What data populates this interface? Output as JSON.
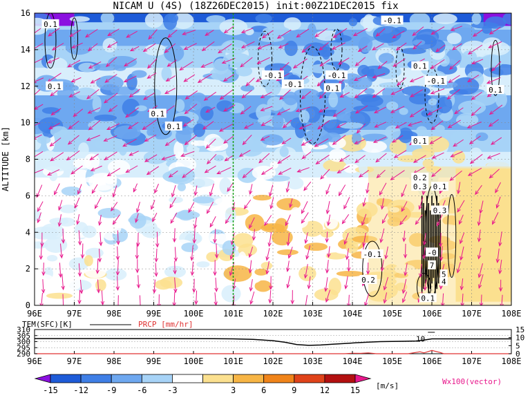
{
  "title": "NICAM U (4S) (18Z26DEC2015) init:00Z21DEC2015 fix",
  "colors": {
    "levels": [
      "#8b10e0",
      "#1e5bd8",
      "#3f7fe6",
      "#6ea8f0",
      "#a7d3f7",
      "#d8eefc",
      "#ffffff",
      "#fbe08f",
      "#f7b545",
      "#f0841a",
      "#e0431a",
      "#b31010",
      "#e8188c"
    ],
    "vector": "#e8188c",
    "contour": "#000000",
    "marker_line": "#1aa01a",
    "temperature": "#000000",
    "precipitation": "#e03030"
  },
  "chart_data": [
    {
      "type": "heatmap",
      "title": "NICAM U (4S) (18Z26DEC2015) init:00Z21DEC2015 fix",
      "xlabel": "",
      "ylabel": "ALTITUDE [km]",
      "x_ticks": [
        "96E",
        "97E",
        "98E",
        "99E",
        "100E",
        "101E",
        "102E",
        "103E",
        "104E",
        "105E",
        "106E",
        "107E",
        "108E"
      ],
      "x_range": [
        96,
        108
      ],
      "y_ticks": [
        "0",
        "2",
        "4",
        "6",
        "8",
        "10",
        "12",
        "14",
        "16"
      ],
      "y_range": [
        0,
        16
      ],
      "grid": true,
      "marker_longitude": 101,
      "colorbar": {
        "levels": [
          "-15",
          "-12",
          "-9",
          "-6",
          "-3",
          "3",
          "6",
          "9",
          "12",
          "15"
        ],
        "units": "[m/s]"
      },
      "vector_legend": "Wx100(vector)",
      "contour_labels": [
        {
          "text": "0.1",
          "lon": 96.4,
          "alt": 15.4
        },
        {
          "text": "0.1",
          "lon": 96.5,
          "alt": 12.0
        },
        {
          "text": "0.1",
          "lon": 99.1,
          "alt": 10.5
        },
        {
          "text": "0.1",
          "lon": 99.5,
          "alt": 9.8
        },
        {
          "text": "-0.1",
          "lon": 102.0,
          "alt": 12.6
        },
        {
          "text": "-0.1",
          "lon": 102.5,
          "alt": 12.1
        },
        {
          "text": "-0.1",
          "lon": 103.6,
          "alt": 12.6
        },
        {
          "text": "0.1",
          "lon": 103.5,
          "alt": 11.9
        },
        {
          "text": "-0.1",
          "lon": 105.0,
          "alt": 15.6
        },
        {
          "text": "0.1",
          "lon": 105.7,
          "alt": 13.1
        },
        {
          "text": "-0.1",
          "lon": 106.1,
          "alt": 12.3
        },
        {
          "text": "0.1",
          "lon": 107.6,
          "alt": 11.8
        },
        {
          "text": "0.1",
          "lon": 105.7,
          "alt": 9.0
        },
        {
          "text": "0.2",
          "lon": 105.7,
          "alt": 7.0
        },
        {
          "text": "0.3",
          "lon": 105.7,
          "alt": 6.5
        },
        {
          "text": "0.1",
          "lon": 106.2,
          "alt": 6.5
        },
        {
          "text": "0.3",
          "lon": 106.2,
          "alt": 5.2
        },
        {
          "text": "-0.1",
          "lon": 104.5,
          "alt": 2.8
        },
        {
          "text": "0.2",
          "lon": 104.4,
          "alt": 1.4
        },
        {
          "text": "-0",
          "lon": 106.0,
          "alt": 2.9
        },
        {
          "text": "7",
          "lon": 106.0,
          "alt": 2.2
        },
        {
          "text": "5",
          "lon": 106.3,
          "alt": 1.7
        },
        {
          "text": "4",
          "lon": 106.3,
          "alt": 1.3
        },
        {
          "text": "0.1",
          "lon": 105.9,
          "alt": 0.4
        }
      ]
    },
    {
      "type": "line",
      "x_ticks": [
        "96E",
        "97E",
        "98E",
        "99E",
        "100E",
        "101E",
        "102E",
        "103E",
        "104E",
        "105E",
        "106E",
        "107E",
        "108E"
      ],
      "x_range": [
        96,
        108
      ],
      "legend": [
        {
          "label": "TEM(SFC)[K]",
          "color": "#000000"
        },
        {
          "label": "PRCP [mm/hr]",
          "color": "#e03030"
        }
      ],
      "left_axis": {
        "ticks": [
          "310",
          "305",
          "300",
          "295",
          "290"
        ],
        "range": [
          290,
          310
        ]
      },
      "right_axis": {
        "ticks": [
          "15",
          "10",
          "5",
          "0"
        ],
        "range": [
          0,
          15
        ]
      },
      "annotation": {
        "text": "10",
        "lon": 105.9
      },
      "series": [
        {
          "name": "TEM(SFC)[K]",
          "x": [
            96,
            96.5,
            97,
            97.5,
            98,
            98.5,
            99,
            99.5,
            100,
            100.5,
            101,
            101.5,
            102,
            102.3,
            102.6,
            102.9,
            103.2,
            103.5,
            103.8,
            104.1,
            104.4,
            104.7,
            105,
            105.3,
            105.6,
            105.8,
            106,
            106.5,
            107,
            107.5,
            108
          ],
          "values": [
            302.5,
            302.5,
            302.5,
            302.5,
            302.5,
            302.5,
            302.5,
            302.5,
            302.5,
            302.4,
            302.3,
            301.8,
            300.8,
            299.5,
            297.6,
            296.9,
            297.2,
            297.8,
            298.4,
            299.1,
            299.6,
            300.0,
            300.2,
            300.3,
            300.5,
            301.3,
            302.3,
            302.3,
            302.3,
            302.3,
            302.3
          ]
        },
        {
          "name": "PRCP [mm/hr]",
          "x": [
            96,
            103.8,
            104.0,
            104.2,
            104.4,
            104.6,
            105.4,
            105.7,
            105.8,
            106.0,
            106.2,
            106.3,
            108
          ],
          "values": [
            0,
            0,
            0.3,
            0.2,
            0.5,
            0,
            0,
            1.2,
            0.5,
            2.0,
            0.8,
            0,
            0
          ]
        }
      ]
    }
  ]
}
